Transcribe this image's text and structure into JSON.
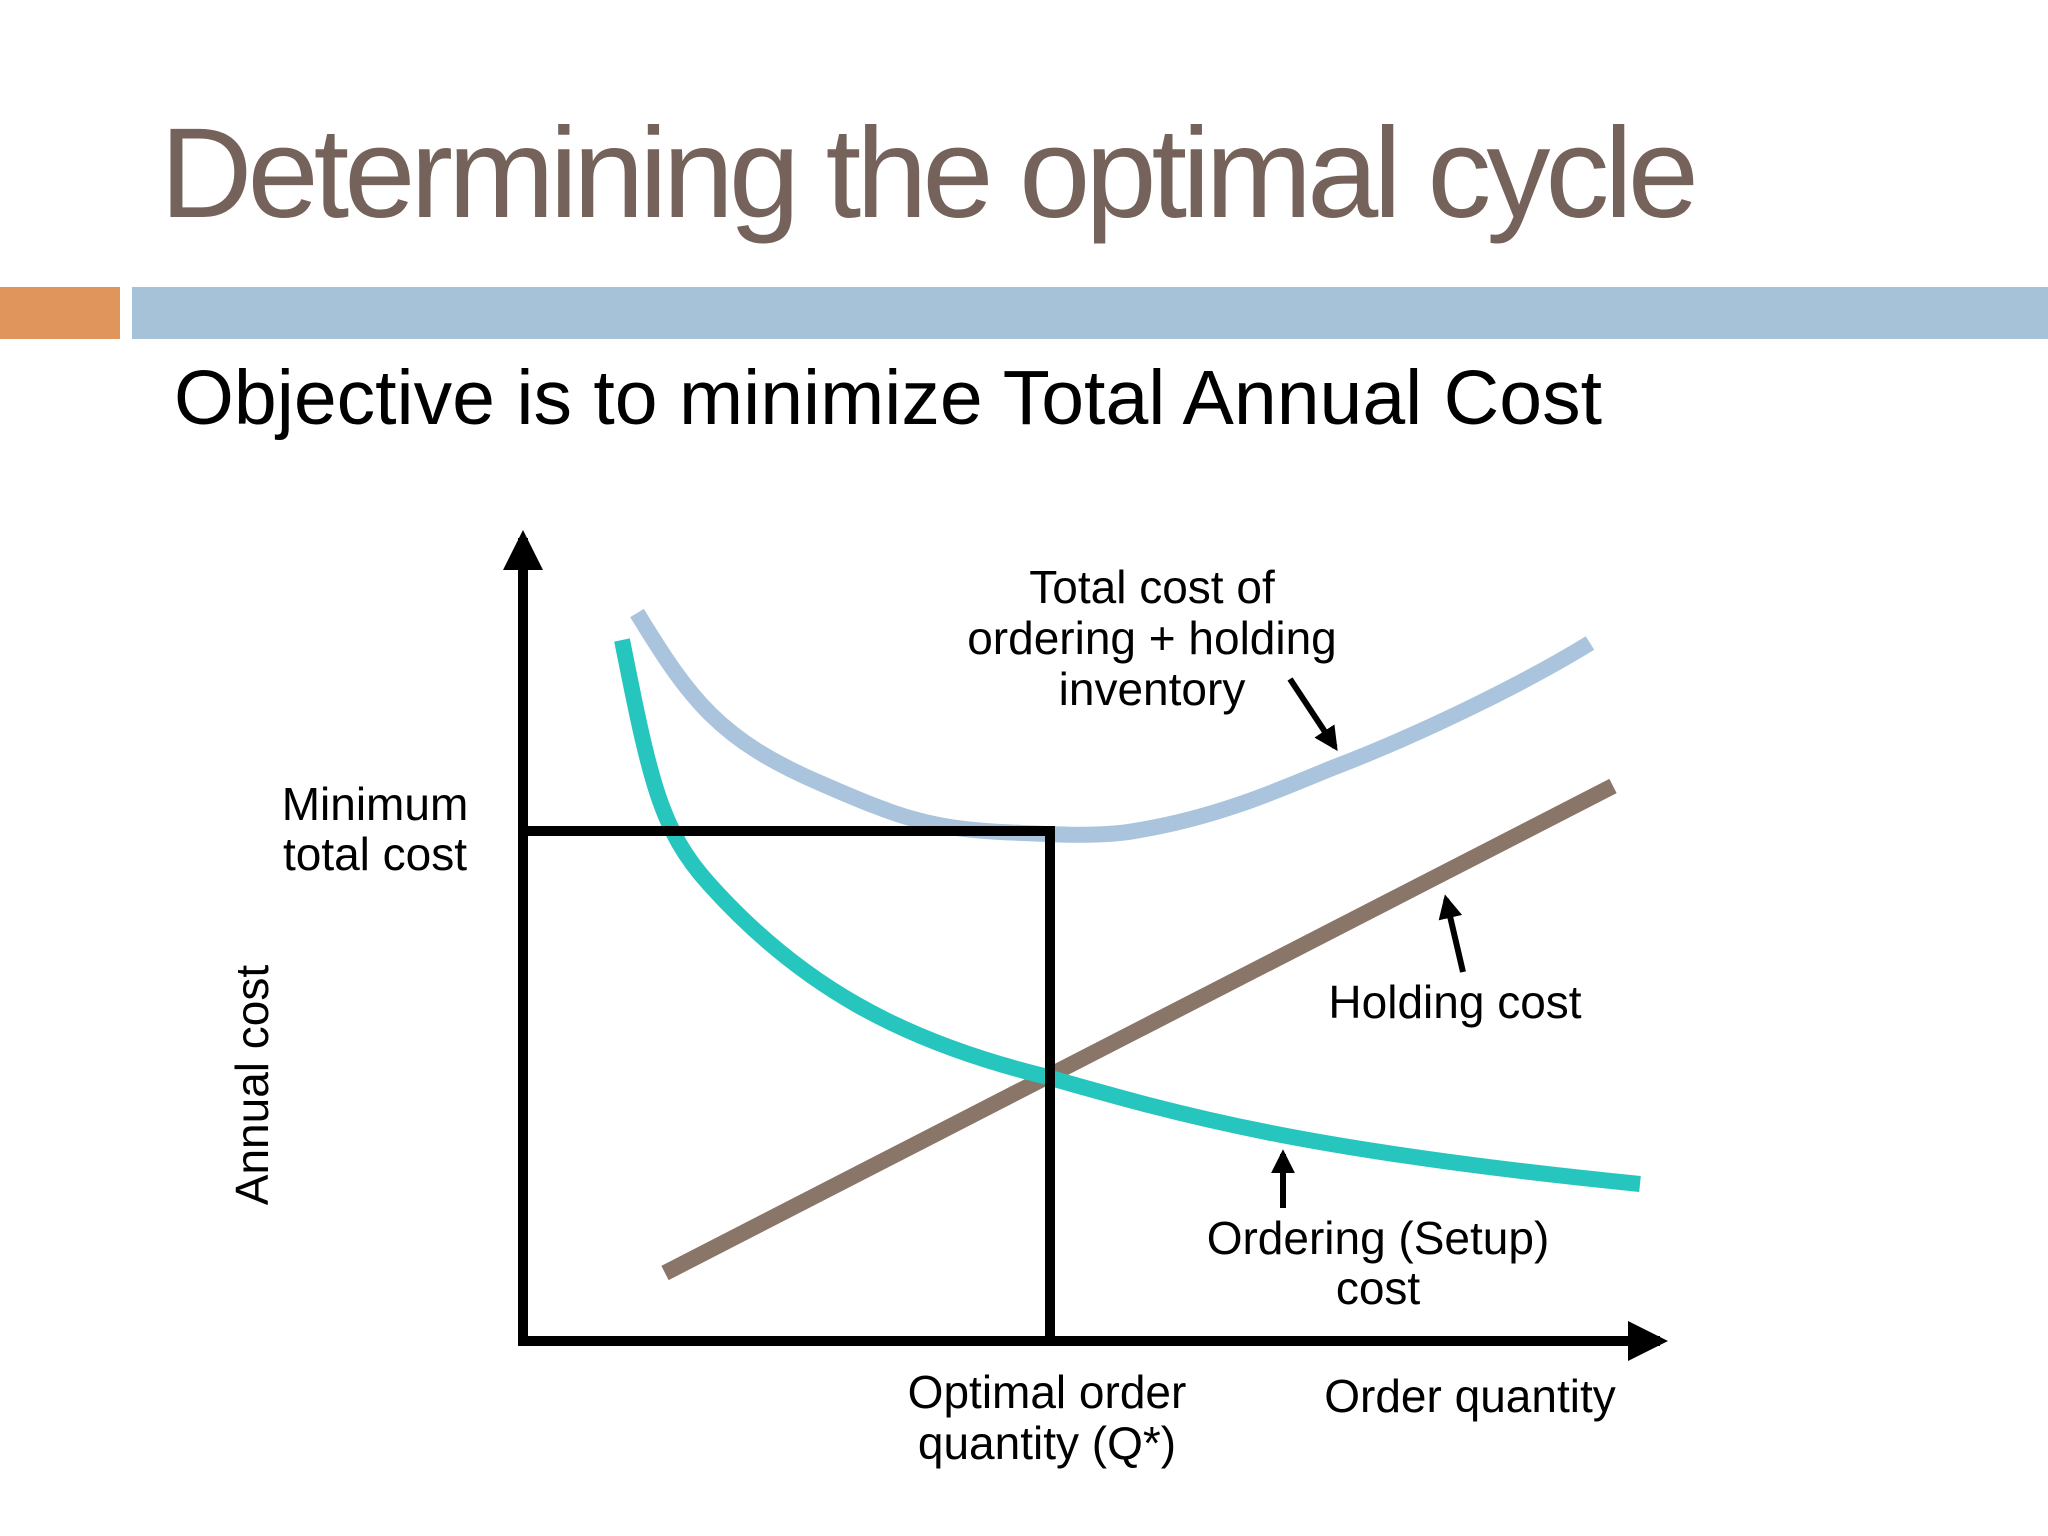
{
  "slide": {
    "title": "Determining the optimal cycle",
    "subtitle": "Objective is to minimize Total Annual Cost"
  },
  "colors": {
    "title": "#75625a",
    "accent_orange": "#e0955c",
    "accent_blue": "#a6c2d9",
    "total_cost_curve": "#a9c4dc",
    "holding_cost_line": "#8a7569",
    "ordering_cost_curve": "#26c6be",
    "axes": "#000000"
  },
  "diagram": {
    "y_axis_label": "Annual cost",
    "x_axis_label": "Order quantity",
    "min_total_cost_label": [
      "Minimum",
      "total cost"
    ],
    "optimal_q_label": [
      "Optimal order",
      "quantity (Q*)"
    ],
    "total_cost_label": [
      "Total cost of",
      "ordering + holding",
      "inventory"
    ],
    "holding_cost_label": "Holding cost",
    "ordering_cost_label": [
      "Ordering (Setup)",
      "cost"
    ]
  }
}
